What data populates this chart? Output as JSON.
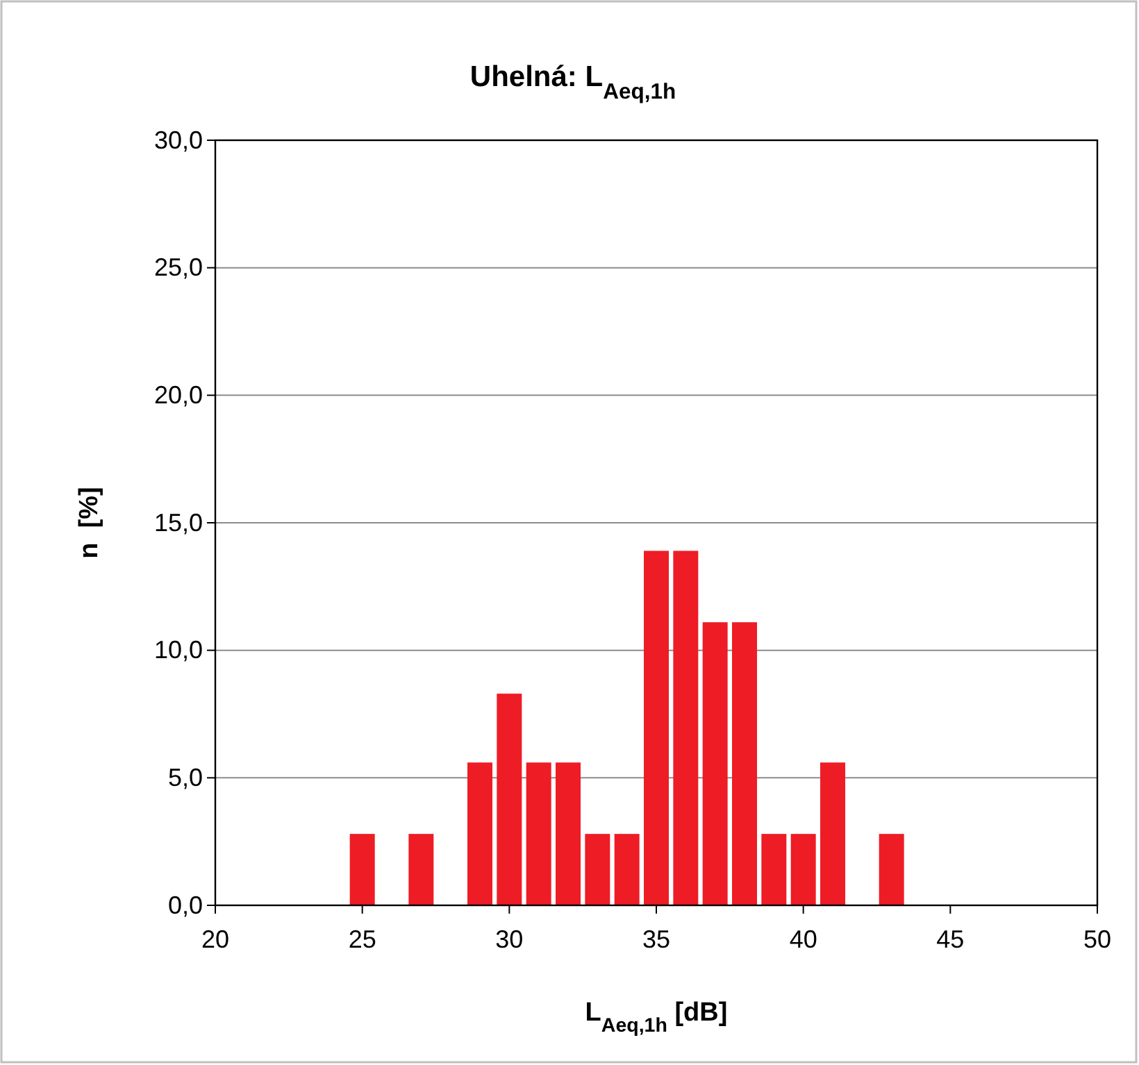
{
  "chart_data": {
    "type": "bar",
    "title": "Uhelná: L$_{Aeq,1h}$",
    "xlabel": "L$_{Aeq,1h}$ [dB]",
    "ylabel": "n  [%]",
    "x": [
      25,
      27,
      29,
      30,
      31,
      32,
      33,
      34,
      35,
      36,
      37,
      38,
      39,
      40,
      41,
      43
    ],
    "values": [
      2.8,
      2.8,
      5.6,
      8.3,
      5.6,
      5.6,
      2.8,
      2.8,
      13.9,
      13.9,
      11.1,
      11.1,
      2.8,
      2.8,
      5.6,
      2.8
    ],
    "color": "#ee1c25",
    "xlim": [
      20,
      50
    ],
    "xticks": [
      20,
      25,
      30,
      35,
      40,
      45,
      50
    ],
    "ylim": [
      0,
      30
    ],
    "yticks": [
      {
        "value": 0,
        "label": "0,0"
      },
      {
        "value": 5,
        "label": "5,0"
      },
      {
        "value": 10,
        "label": "10,0"
      },
      {
        "value": 15,
        "label": "15,0"
      },
      {
        "value": 20,
        "label": "20,0"
      },
      {
        "value": 25,
        "label": "25,0"
      },
      {
        "value": 30,
        "label": "30,0"
      }
    ],
    "grid": "y"
  }
}
